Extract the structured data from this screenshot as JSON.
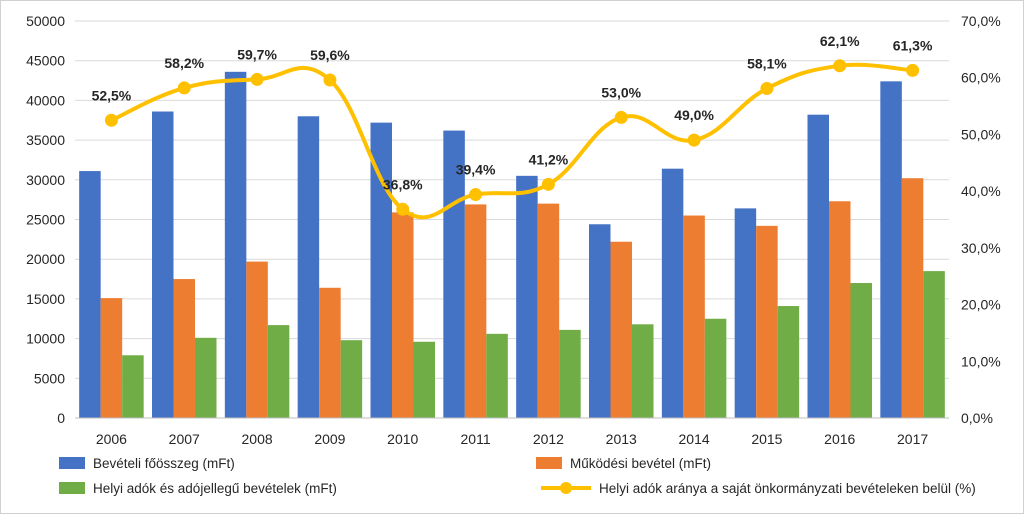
{
  "chart_data": {
    "type": "bar",
    "categories": [
      "2006",
      "2007",
      "2008",
      "2009",
      "2010",
      "2011",
      "2012",
      "2013",
      "2014",
      "2015",
      "2016",
      "2017"
    ],
    "series": [
      {
        "name": "Bevételi főösszeg (mFt)",
        "kind": "bar",
        "axis": "left",
        "color": "#4472C4",
        "values": [
          31100,
          38600,
          43600,
          38000,
          37200,
          36200,
          30500,
          24400,
          31400,
          26400,
          38200,
          42400
        ]
      },
      {
        "name": "Működési bevétel (mFt)",
        "kind": "bar",
        "axis": "left",
        "color": "#ED7D31",
        "values": [
          15100,
          17500,
          19700,
          16400,
          25900,
          26900,
          27000,
          22200,
          25500,
          24200,
          27300,
          30200
        ]
      },
      {
        "name": "Helyi adók és adójellegű bevételek (mFt)",
        "kind": "bar",
        "axis": "left",
        "color": "#70AD47",
        "values": [
          7900,
          10100,
          11700,
          9800,
          9600,
          10600,
          11100,
          11800,
          12500,
          14100,
          17000,
          18500
        ]
      },
      {
        "name": "Helyi adók aránya a saját önkormányzati bevételeken belül (%)",
        "kind": "line",
        "axis": "right",
        "color": "#FFC000",
        "values": [
          52.5,
          58.2,
          59.7,
          59.6,
          36.8,
          39.4,
          41.2,
          53.0,
          49.0,
          58.1,
          62.1,
          61.3
        ],
        "labels": [
          "52,5%",
          "58,2%",
          "59,7%",
          "59,6%",
          "36,8%",
          "39,4%",
          "41,2%",
          "53,0%",
          "49,0%",
          "58,1%",
          "62,1%",
          "61,3%"
        ]
      }
    ],
    "y_left": {
      "min": 0,
      "max": 50000,
      "ticks": [
        "0",
        "5000",
        "10000",
        "15000",
        "20000",
        "25000",
        "30000",
        "35000",
        "40000",
        "45000",
        "50000"
      ]
    },
    "y_right": {
      "min": 0,
      "max": 70,
      "ticks": [
        "0,0%",
        "10,0%",
        "20,0%",
        "30,0%",
        "40,0%",
        "50,0%",
        "60,0%",
        "70,0%"
      ]
    },
    "grid": true,
    "legend_position": "bottom"
  }
}
